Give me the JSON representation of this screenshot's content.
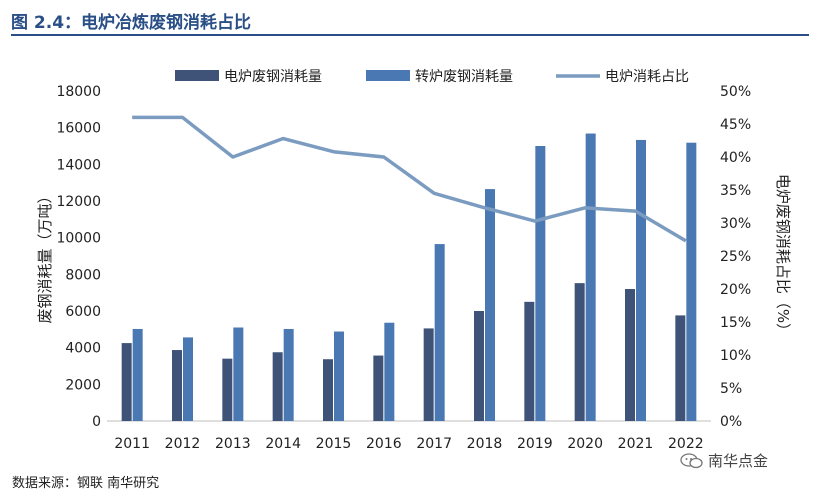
{
  "title": "图 2.4：电炉冶炼废钢消耗占比",
  "source": "数据来源：钢联  南华研究",
  "watermark": "南华点金",
  "watermark_icon": "wechat-icon",
  "colors": {
    "title": "#2a4f86",
    "eaf_bar": "#3f5378",
    "bof_bar": "#4a78b3",
    "share_line": "#7b9cc0"
  },
  "chart_data": {
    "type": "bar",
    "categories": [
      "2011",
      "2012",
      "2013",
      "2014",
      "2015",
      "2016",
      "2017",
      "2018",
      "2019",
      "2020",
      "2021",
      "2022"
    ],
    "series": [
      {
        "name": "电炉废钢消耗量",
        "type": "bar",
        "axis": "left",
        "values": [
          4250,
          3870,
          3400,
          3750,
          3370,
          3570,
          5050,
          6000,
          6500,
          7520,
          7200,
          5760
        ]
      },
      {
        "name": "转炉废钢消耗量",
        "type": "bar",
        "axis": "left",
        "values": [
          5020,
          4560,
          5100,
          5020,
          4880,
          5360,
          9650,
          12650,
          15000,
          15680,
          15330,
          15180
        ]
      },
      {
        "name": "电炉消耗占比",
        "type": "line",
        "axis": "right",
        "values": [
          46,
          46,
          40,
          42.8,
          40.8,
          40,
          34.5,
          32.3,
          30.3,
          32.3,
          31.8,
          27.3
        ]
      }
    ],
    "ylabel": "废钢消耗量（万吨）",
    "y2label": "电炉废钢消耗占比（%）",
    "ylim": [
      0,
      18000
    ],
    "yticks": [
      "0",
      "2000",
      "4000",
      "6000",
      "8000",
      "10000",
      "12000",
      "14000",
      "16000",
      "18000"
    ],
    "y2lim": [
      0,
      50
    ],
    "y2ticks": [
      "0%",
      "5%",
      "10%",
      "15%",
      "20%",
      "25%",
      "30%",
      "35%",
      "40%",
      "45%",
      "50%"
    ],
    "grid": false,
    "legend": "top"
  }
}
